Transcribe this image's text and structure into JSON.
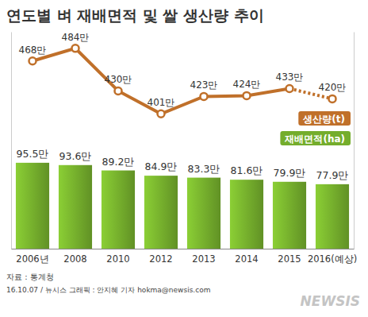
{
  "chart_data": {
    "type": "bar",
    "title": "연도별 벼 재배면적 및 쌀 생산량 추이",
    "categories": [
      "2006년",
      "2008",
      "2010",
      "2012",
      "2013",
      "2014",
      "2015",
      "2016(예상)"
    ],
    "series": [
      {
        "name": "재배면적(ha)",
        "type": "bar",
        "color": "#74ad2c",
        "values": [
          95.5,
          93.6,
          89.2,
          84.9,
          83.3,
          81.6,
          79.9,
          77.9
        ],
        "value_labels": [
          "95.5만",
          "93.6만",
          "89.2만",
          "84.9만",
          "83.3만",
          "81.6만",
          "79.9만",
          "77.9만"
        ]
      },
      {
        "name": "생산량(t)",
        "type": "line",
        "axis": "y2",
        "color": "#c0702a",
        "marker": "circle",
        "values": [
          468,
          484,
          430,
          401,
          423,
          424,
          433,
          420
        ],
        "value_labels": [
          "468만",
          "484만",
          "430만",
          "401만",
          "423만",
          "424만",
          "433만",
          "420만"
        ]
      }
    ],
    "ylim": [
      25,
      203
    ],
    "y2lim": [
      230,
      505
    ],
    "data_labels": true,
    "tick_labels": "x",
    "legend": "right",
    "source": "자료 : 통계청",
    "credit": "16.10.07 / 뉴시스 그래픽 : 안지혜 기자 hokma@newsis.com",
    "watermark": "NEWSIS"
  }
}
